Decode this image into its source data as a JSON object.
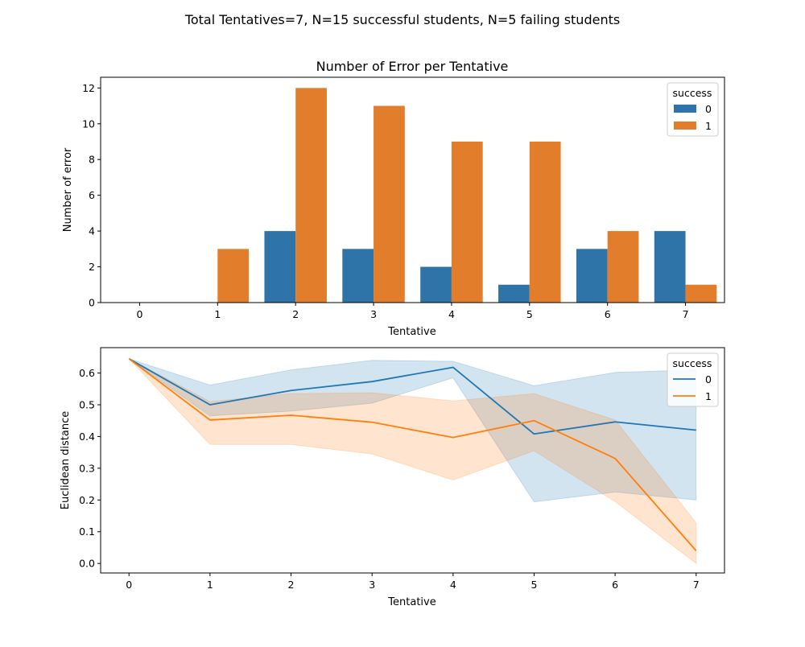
{
  "figure": {
    "suptitle": "Total Tentatives=7, N=15 successful students, N=5 failing students"
  },
  "colors": {
    "series_0": "#2f74a8",
    "series_1": "#e27e2b",
    "band_0": "#1f77b4",
    "band_1": "#ff7f0e"
  },
  "chart_data": [
    {
      "type": "bar",
      "title": "Number of Error per Tentative",
      "xlabel": "Tentative",
      "ylabel": "Number of error",
      "categories": [
        "0",
        "1",
        "2",
        "3",
        "4",
        "5",
        "6",
        "7"
      ],
      "ylim": [
        0,
        12.6
      ],
      "yticks": [
        0,
        2,
        4,
        6,
        8,
        10,
        12
      ],
      "legend": {
        "title": "success",
        "placement": "top-right"
      },
      "series": [
        {
          "name": "0",
          "values": [
            0,
            0,
            4,
            3,
            2,
            1,
            3,
            4
          ]
        },
        {
          "name": "1",
          "values": [
            0,
            3,
            12,
            11,
            9,
            9,
            4,
            1
          ]
        }
      ],
      "grid": false
    },
    {
      "type": "line",
      "xlabel": "Tentative",
      "ylabel": "Euclidean distance",
      "x": [
        0,
        1,
        2,
        3,
        4,
        5,
        6,
        7
      ],
      "xlim": [
        -0.35,
        7.35
      ],
      "ylim": [
        -0.03,
        0.68
      ],
      "yticks": [
        0.0,
        0.1,
        0.2,
        0.3,
        0.4,
        0.5,
        0.6
      ],
      "legend": {
        "title": "success",
        "placement": "top-right"
      },
      "series": [
        {
          "name": "0",
          "values": [
            0.645,
            0.5,
            0.545,
            0.573,
            0.618,
            0.408,
            0.446,
            0.42
          ],
          "ci_low": [
            0.645,
            0.465,
            0.48,
            0.505,
            0.585,
            0.194,
            0.225,
            0.2
          ],
          "ci_high": [
            0.645,
            0.562,
            0.61,
            0.64,
            0.637,
            0.56,
            0.602,
            0.61
          ]
        },
        {
          "name": "1",
          "values": [
            0.645,
            0.452,
            0.467,
            0.445,
            0.397,
            0.45,
            0.331,
            0.04
          ],
          "ci_low": [
            0.645,
            0.375,
            0.375,
            0.345,
            0.263,
            0.355,
            0.195,
            0.0
          ],
          "ci_high": [
            0.645,
            0.51,
            0.535,
            0.538,
            0.512,
            0.535,
            0.452,
            0.128
          ]
        }
      ],
      "grid": false
    }
  ]
}
